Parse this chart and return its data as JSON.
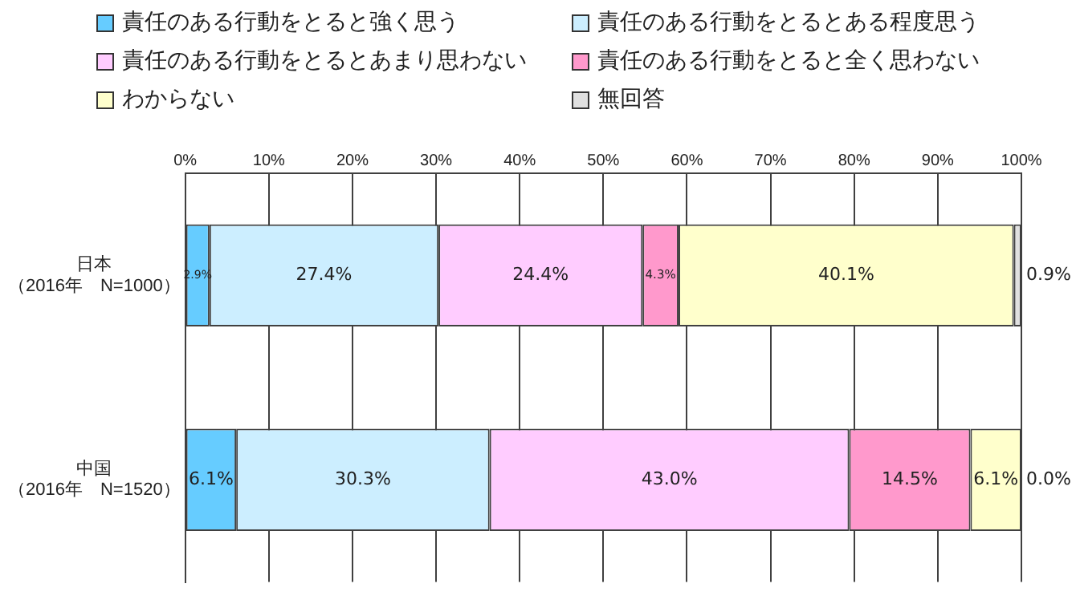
{
  "chart_data": {
    "type": "bar",
    "orientation": "horizontal",
    "stacked": true,
    "legend": "top",
    "grid": "x",
    "categories": [
      "日本（2016年　N=1000）",
      "中国（2016年　N=1520）"
    ],
    "xlim": [
      0,
      100
    ],
    "xticks": [
      {
        "value": 0,
        "label": "0%"
      },
      {
        "value": 10,
        "label": "10%"
      },
      {
        "value": 20,
        "label": "20%"
      },
      {
        "value": 30,
        "label": "30%"
      },
      {
        "value": 40,
        "label": "40%"
      },
      {
        "value": 50,
        "label": "50%"
      },
      {
        "value": 60,
        "label": "60%"
      },
      {
        "value": 70,
        "label": "70%"
      },
      {
        "value": 80,
        "label": "80%"
      },
      {
        "value": 90,
        "label": "90%"
      },
      {
        "value": 100,
        "label": "100%"
      }
    ],
    "series": [
      {
        "name": "責任のある行動をとると強く思う",
        "color": "#66ccff",
        "values": [
          2.9,
          6.1
        ],
        "value_labels": [
          "2.9%",
          "6.1%"
        ]
      },
      {
        "name": "責任のある行動をとるとある程度思う",
        "color": "#cceeff",
        "values": [
          27.4,
          30.3
        ],
        "value_labels": [
          "27.4%",
          "30.3%"
        ]
      },
      {
        "name": "責任のある行動をとるとあまり思わない",
        "color": "#ffccff",
        "values": [
          24.4,
          43.0
        ],
        "value_labels": [
          "24.4%",
          "43.0%"
        ]
      },
      {
        "name": "責任のある行動をとると全く思わない",
        "color": "#ff99cc",
        "values": [
          4.3,
          14.5
        ],
        "value_labels": [
          "4.3%",
          "14.5%"
        ]
      },
      {
        "name": "わからない",
        "color": "#ffffcc",
        "values": [
          40.1,
          6.1
        ],
        "value_labels": [
          "40.1%",
          "6.1%"
        ]
      },
      {
        "name": "無回答",
        "color": "#e0e0e0",
        "values": [
          0.9,
          0.0
        ],
        "value_labels": [
          "0.9%",
          "0.0%"
        ]
      }
    ]
  }
}
